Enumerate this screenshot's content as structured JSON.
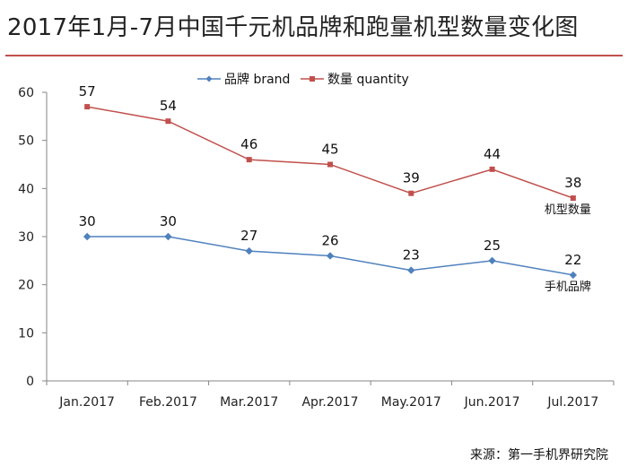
{
  "title": "2017年1月-7月中国千元机品牌和跑量机型数量变化图",
  "source": "来源：第一手机界研究院",
  "colors": {
    "brand": "#4f81bd",
    "quantity": "#c0504d",
    "title_rule": "#c0504d",
    "axis": "#868686",
    "grid": "#bfbfbf"
  },
  "chart_data": {
    "type": "line",
    "categories": [
      "Jan.2017",
      "Feb.2017",
      "Mar.2017",
      "Apr.2017",
      "May.2017",
      "Jun.2017",
      "Jul.2017"
    ],
    "series": [
      {
        "name": "品牌 brand",
        "key": "brand",
        "marker": "diamond",
        "values": [
          30,
          30,
          27,
          26,
          23,
          25,
          22
        ],
        "end_label": "手机品牌"
      },
      {
        "name": "数量 quantity",
        "key": "quantity",
        "marker": "square",
        "values": [
          57,
          54,
          46,
          45,
          39,
          44,
          38
        ],
        "end_label": "机型数量"
      }
    ],
    "ylim": [
      0,
      60
    ],
    "yticks": [
      0,
      10,
      20,
      30,
      40,
      50,
      60
    ],
    "grid": false,
    "legend": "top",
    "data_labels": true
  }
}
